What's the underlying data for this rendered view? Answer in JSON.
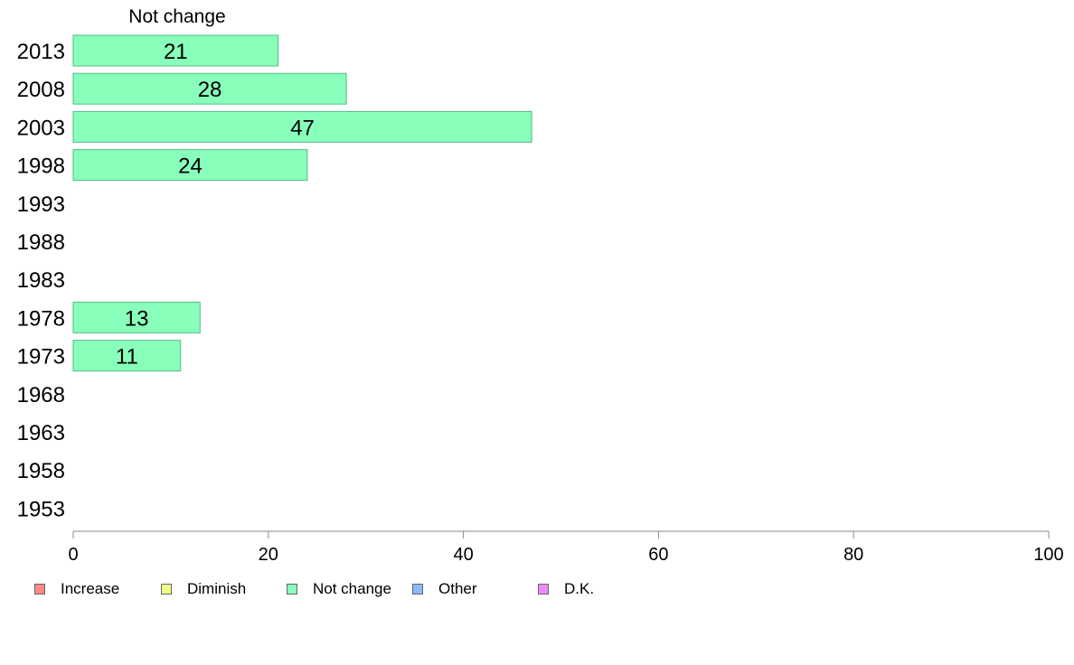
{
  "chart_data": {
    "type": "bar",
    "orientation": "horizontal",
    "panel_title": "Not change",
    "categories": [
      "2013",
      "2008",
      "2003",
      "1998",
      "1993",
      "1988",
      "1983",
      "1978",
      "1973",
      "1968",
      "1963",
      "1958",
      "1953"
    ],
    "series": [
      {
        "name": "Not change",
        "color": "#88ffbb",
        "values": [
          21,
          28,
          47,
          24,
          null,
          null,
          null,
          13,
          11,
          null,
          null,
          null,
          null
        ],
        "labels": [
          "21",
          "28",
          "47",
          "24",
          "",
          "",
          "",
          "13",
          "11",
          "",
          "",
          "",
          ""
        ]
      }
    ],
    "xlim": [
      0,
      100
    ],
    "xticks": [
      0,
      20,
      40,
      60,
      80,
      100
    ],
    "xtick_labels": [
      "0",
      "20",
      "40",
      "60",
      "80",
      "100"
    ],
    "grid": false,
    "bar_stroke": "#55bb88",
    "legend_position": "bottom-left",
    "legend": [
      {
        "label": "Increase",
        "color": "#ff8888"
      },
      {
        "label": "Diminish",
        "color": "#eeff88"
      },
      {
        "label": "Not change",
        "color": "#88ffbb"
      },
      {
        "label": "Other",
        "color": "#88bbff"
      },
      {
        "label": "D.K.",
        "color": "#ee88ff"
      }
    ]
  }
}
